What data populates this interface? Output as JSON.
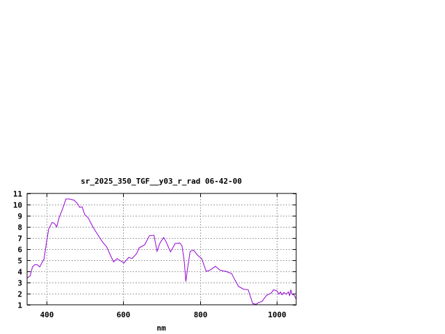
{
  "chart_data": {
    "type": "line",
    "title": "sr_2025_350_TGF__y03_r_rad 06-42-00",
    "xlabel": "nm",
    "ylabel": "",
    "xlim": [
      350,
      1050
    ],
    "ylim": [
      1,
      11
    ],
    "xticks": [
      400,
      600,
      800,
      1000
    ],
    "yticks": [
      1,
      2,
      3,
      4,
      5,
      6,
      7,
      8,
      9,
      10,
      11
    ],
    "grid": true,
    "line_color": "#9400d3",
    "series": [
      {
        "x": [
          350,
          358,
          364,
          370,
          376,
          383,
          388,
          394,
          400,
          406,
          415,
          421,
          427,
          433,
          442,
          451,
          460,
          472,
          481,
          487,
          493,
          500,
          509,
          521,
          530,
          545,
          557,
          566,
          575,
          584,
          593,
          602,
          614,
          623,
          635,
          641,
          656,
          668,
          680,
          688,
          695,
          705,
          711,
          723,
          735,
          747,
          753,
          759,
          763,
          768,
          774,
          783,
          795,
          804,
          816,
          825,
          840,
          852,
          867,
          882,
          891,
          900,
          913,
          925,
          937,
          946,
          952,
          961,
          973,
          985,
          991,
          1000,
          1005,
          1009,
          1013,
          1018,
          1024,
          1030,
          1033,
          1036,
          1039,
          1045,
          1050
        ],
        "y": [
          3.4,
          3.6,
          4.4,
          4.6,
          4.6,
          4.4,
          4.75,
          5.1,
          6.5,
          7.8,
          8.4,
          8.3,
          8.0,
          8.8,
          9.6,
          10.5,
          10.5,
          10.4,
          10.1,
          9.75,
          9.8,
          9.1,
          8.8,
          8.0,
          7.5,
          6.7,
          6.2,
          5.5,
          4.85,
          5.15,
          4.95,
          4.75,
          5.25,
          5.15,
          5.6,
          6.1,
          6.4,
          7.2,
          7.25,
          5.8,
          6.5,
          7.05,
          6.7,
          5.75,
          6.5,
          6.55,
          6.3,
          4.85,
          3.1,
          4.4,
          5.8,
          5.9,
          5.4,
          5.15,
          4.0,
          4.1,
          4.45,
          4.1,
          4.0,
          3.8,
          3.2,
          2.65,
          2.4,
          2.35,
          1.1,
          1.05,
          1.2,
          1.3,
          1.85,
          2.05,
          2.35,
          2.25,
          1.95,
          2.15,
          1.9,
          2.1,
          1.95,
          2.15,
          1.8,
          2.35,
          1.95,
          1.85,
          1.5
        ]
      }
    ]
  }
}
